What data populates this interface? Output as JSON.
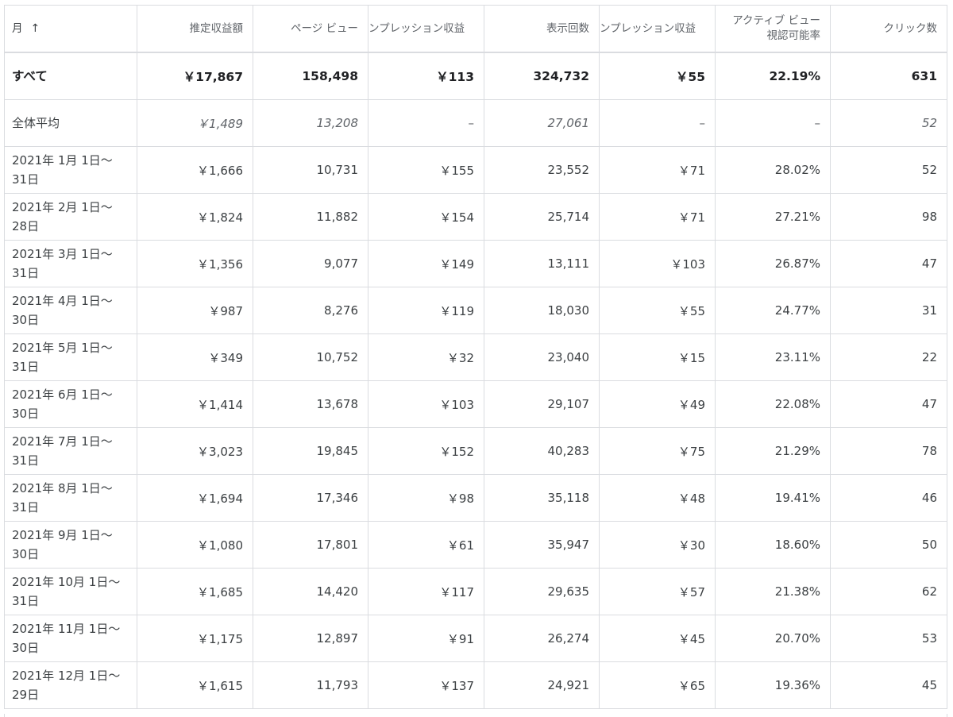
{
  "header": {
    "month": "月",
    "revenue": "推定収益額",
    "pageviews": "ページ ビュー",
    "impression_revenue_cut": "ンプレッション収益",
    "impressions": "表示回数",
    "impression_revenue_cut_2": "ンプレッション収益",
    "active_view": "アクティブ ビュー視認可能率",
    "clicks": "クリック数"
  },
  "total": {
    "label": "すべて",
    "revenue": "￥17,867",
    "pageviews": "158,498",
    "page_rpm": "￥113",
    "impressions": "324,732",
    "impression_rpm": "￥55",
    "active_view": "22.19%",
    "clicks": "631"
  },
  "average": {
    "label": "全体平均",
    "revenue": "￥1,489",
    "pageviews": "13,208",
    "page_rpm": "–",
    "impressions": "27,061",
    "impression_rpm": "–",
    "active_view": "–",
    "clicks": "52"
  },
  "rows": [
    {
      "month": "2021年 1月 1日～31日",
      "revenue": "￥1,666",
      "pageviews": "10,731",
      "page_rpm": "￥155",
      "impressions": "23,552",
      "impression_rpm": "￥71",
      "active_view": "28.02%",
      "clicks": "52"
    },
    {
      "month": "2021年 2月 1日～28日",
      "revenue": "￥1,824",
      "pageviews": "11,882",
      "page_rpm": "￥154",
      "impressions": "25,714",
      "impression_rpm": "￥71",
      "active_view": "27.21%",
      "clicks": "98"
    },
    {
      "month": "2021年 3月 1日～31日",
      "revenue": "￥1,356",
      "pageviews": "9,077",
      "page_rpm": "￥149",
      "impressions": "13,111",
      "impression_rpm": "￥103",
      "active_view": "26.87%",
      "clicks": "47"
    },
    {
      "month": "2021年 4月 1日～30日",
      "revenue": "￥987",
      "pageviews": "8,276",
      "page_rpm": "￥119",
      "impressions": "18,030",
      "impression_rpm": "￥55",
      "active_view": "24.77%",
      "clicks": "31"
    },
    {
      "month": "2021年 5月 1日～31日",
      "revenue": "￥349",
      "pageviews": "10,752",
      "page_rpm": "￥32",
      "impressions": "23,040",
      "impression_rpm": "￥15",
      "active_view": "23.11%",
      "clicks": "22"
    },
    {
      "month": "2021年 6月 1日～30日",
      "revenue": "￥1,414",
      "pageviews": "13,678",
      "page_rpm": "￥103",
      "impressions": "29,107",
      "impression_rpm": "￥49",
      "active_view": "22.08%",
      "clicks": "47"
    },
    {
      "month": "2021年 7月 1日～31日",
      "revenue": "￥3,023",
      "pageviews": "19,845",
      "page_rpm": "￥152",
      "impressions": "40,283",
      "impression_rpm": "￥75",
      "active_view": "21.29%",
      "clicks": "78"
    },
    {
      "month": "2021年 8月 1日～31日",
      "revenue": "￥1,694",
      "pageviews": "17,346",
      "page_rpm": "￥98",
      "impressions": "35,118",
      "impression_rpm": "￥48",
      "active_view": "19.41%",
      "clicks": "46"
    },
    {
      "month": "2021年 9月 1日～30日",
      "revenue": "￥1,080",
      "pageviews": "17,801",
      "page_rpm": "￥61",
      "impressions": "35,947",
      "impression_rpm": "￥30",
      "active_view": "18.60%",
      "clicks": "50"
    },
    {
      "month": "2021年 10月 1日～31日",
      "revenue": "￥1,685",
      "pageviews": "14,420",
      "page_rpm": "￥117",
      "impressions": "29,635",
      "impression_rpm": "￥57",
      "active_view": "21.38%",
      "clicks": "62"
    },
    {
      "month": "2021年 11月 1日～30日",
      "revenue": "￥1,175",
      "pageviews": "12,897",
      "page_rpm": "￥91",
      "impressions": "26,274",
      "impression_rpm": "￥45",
      "active_view": "20.70%",
      "clicks": "53"
    },
    {
      "month": "2021年 12月 1日～29日",
      "revenue": "￥1,615",
      "pageviews": "11,793",
      "page_rpm": "￥137",
      "impressions": "24,921",
      "impression_rpm": "￥65",
      "active_view": "19.36%",
      "clicks": "45"
    }
  ],
  "icons": {
    "sort": "arrow-up-icon"
  }
}
